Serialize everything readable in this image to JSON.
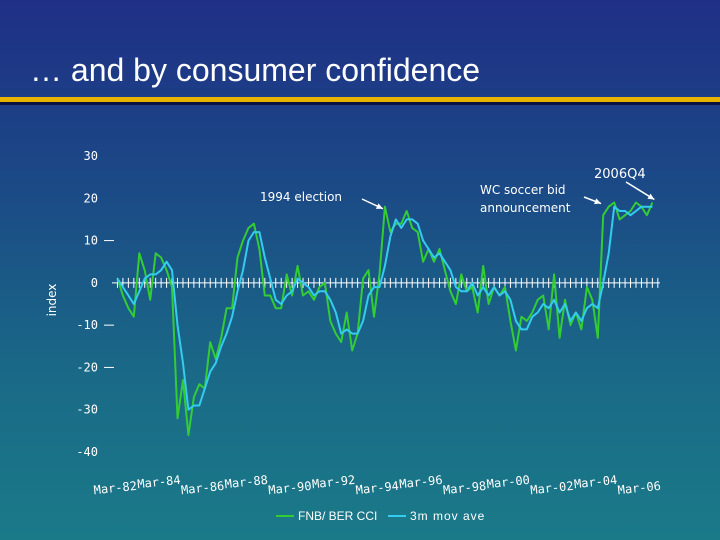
{
  "title": "… and by consumer confidence",
  "colors": {
    "rule_gold": "#e8b400",
    "rule_dark": "#0a1040",
    "series1": "#33cc33",
    "series2": "#33ccee",
    "text": "#ffffff"
  },
  "chart_data": {
    "type": "line",
    "ylabel": "index",
    "ylim": [
      -40,
      30
    ],
    "yticks": [
      "30",
      "20",
      "10",
      "0",
      "-10",
      "-20",
      "-30",
      "-40"
    ],
    "xlabels": [
      "Mar-82",
      "Mar-84",
      "Mar-86",
      "Mar-88",
      "Mar-90",
      "Mar-92",
      "Mar-94",
      "Mar-96",
      "Mar-98",
      "Mar-00",
      "Mar-02",
      "Mar-04",
      "Mar-06"
    ],
    "xlim": [
      1982.0,
      2007.1
    ],
    "legend_position": "bottom",
    "series": [
      {
        "name": "FNB/ BER CCI",
        "color": "#33cc33",
        "x": [
          1982.25,
          1982.5,
          1982.75,
          1983.0,
          1983.25,
          1983.5,
          1983.75,
          1984.0,
          1984.25,
          1984.5,
          1984.75,
          1985.0,
          1985.25,
          1985.5,
          1985.75,
          1986.0,
          1986.25,
          1986.5,
          1986.75,
          1987.0,
          1987.25,
          1987.5,
          1987.75,
          1988.0,
          1988.25,
          1988.5,
          1988.75,
          1989.0,
          1989.25,
          1989.5,
          1989.75,
          1990.0,
          1990.25,
          1990.5,
          1990.75,
          1991.0,
          1991.25,
          1991.5,
          1991.75,
          1992.0,
          1992.25,
          1992.5,
          1992.75,
          1993.0,
          1993.25,
          1993.5,
          1993.75,
          1994.0,
          1994.25,
          1994.5,
          1994.75,
          1995.0,
          1995.25,
          1995.5,
          1995.75,
          1996.0,
          1996.25,
          1996.5,
          1996.75,
          1997.0,
          1997.25,
          1997.5,
          1997.75,
          1998.0,
          1998.25,
          1998.5,
          1998.75,
          1999.0,
          1999.25,
          1999.5,
          1999.75,
          2000.0,
          2000.25,
          2000.5,
          2000.75,
          2001.0,
          2001.25,
          2001.5,
          2001.75,
          2002.0,
          2002.25,
          2002.5,
          2002.75,
          2003.0,
          2003.25,
          2003.5,
          2003.75,
          2004.0,
          2004.25,
          2004.5,
          2004.75,
          2005.0,
          2005.25,
          2005.5,
          2005.75,
          2006.0,
          2006.25,
          2006.5,
          2006.75
        ],
        "values": [
          1,
          -3,
          -6,
          -8,
          7,
          3,
          -4,
          7,
          6,
          3,
          -1,
          -32,
          -23,
          -36,
          -27,
          -24,
          -25,
          -14,
          -18,
          -13,
          -6,
          -6,
          6,
          10,
          13,
          14,
          8,
          -3,
          -3,
          -6,
          -6,
          2,
          -3,
          4,
          -3,
          -2,
          -4,
          -1,
          0,
          -9,
          -12,
          -14,
          -7,
          -16,
          -12,
          1,
          3,
          -8,
          2,
          18,
          12,
          14,
          14,
          17,
          13,
          12,
          5,
          8,
          5,
          8,
          3,
          -2,
          -5,
          2,
          -2,
          -1,
          -7,
          4,
          -5,
          -1,
          -3,
          -1,
          -9,
          -16,
          -8,
          -9,
          -7,
          -4,
          -3,
          -11,
          2,
          -13,
          -4,
          -10,
          -7,
          -11,
          -1,
          -4,
          -13,
          16,
          18,
          19,
          15,
          16,
          17,
          19,
          18,
          16,
          19
        ]
      },
      {
        "name": "3m mov ave",
        "color": "#33ccee",
        "x": [
          1982.25,
          1982.5,
          1982.75,
          1983.0,
          1983.25,
          1983.5,
          1983.75,
          1984.0,
          1984.25,
          1984.5,
          1984.75,
          1985.0,
          1985.25,
          1985.5,
          1985.75,
          1986.0,
          1986.25,
          1986.5,
          1986.75,
          1987.0,
          1987.25,
          1987.5,
          1987.75,
          1988.0,
          1988.25,
          1988.5,
          1988.75,
          1989.0,
          1989.25,
          1989.5,
          1989.75,
          1990.0,
          1990.25,
          1990.5,
          1990.75,
          1991.0,
          1991.25,
          1991.5,
          1991.75,
          1992.0,
          1992.25,
          1992.5,
          1992.75,
          1993.0,
          1993.25,
          1993.5,
          1993.75,
          1994.0,
          1994.25,
          1994.5,
          1994.75,
          1995.0,
          1995.25,
          1995.5,
          1995.75,
          1996.0,
          1996.25,
          1996.5,
          1996.75,
          1997.0,
          1997.25,
          1997.5,
          1997.75,
          1998.0,
          1998.25,
          1998.5,
          1998.75,
          1999.0,
          1999.25,
          1999.5,
          1999.75,
          2000.0,
          2000.25,
          2000.5,
          2000.75,
          2001.0,
          2001.25,
          2001.5,
          2001.75,
          2002.0,
          2002.25,
          2002.5,
          2002.75,
          2003.0,
          2003.25,
          2003.5,
          2003.75,
          2004.0,
          2004.25,
          2004.5,
          2004.75,
          2005.0,
          2005.25,
          2005.5,
          2005.75,
          2006.0,
          2006.25,
          2006.5,
          2006.75
        ],
        "values": [
          1,
          -1,
          -3,
          -5,
          -2,
          1,
          2,
          2,
          3,
          5,
          3,
          -10,
          -19,
          -30,
          -29,
          -29,
          -25,
          -21,
          -19,
          -15,
          -12,
          -8,
          -2,
          3,
          10,
          12,
          12,
          6,
          1,
          -4,
          -5,
          -3,
          -2,
          1,
          0,
          -1,
          -3,
          -2,
          -2,
          -4,
          -7,
          -12,
          -11,
          -12,
          -12,
          -9,
          -3,
          -1,
          -1,
          4,
          11,
          15,
          13,
          15,
          15,
          14,
          10,
          8,
          6,
          7,
          5,
          3,
          -1,
          -2,
          -2,
          0,
          -3,
          -1,
          -3,
          -1,
          -3,
          -2,
          -4,
          -9,
          -11,
          -11,
          -8,
          -7,
          -5,
          -6,
          -4,
          -7,
          -5,
          -9,
          -7,
          -9,
          -6,
          -5,
          -6,
          0,
          7,
          18,
          17,
          17,
          16,
          17,
          18,
          18,
          18
        ]
      }
    ],
    "annotations": [
      {
        "text": "1994 election",
        "x": 1994.5,
        "y": 18
      },
      {
        "text": "WC soccer bid\nannouncement",
        "x": 2004.4,
        "y": 19
      },
      {
        "text": "2006Q4",
        "x": 2006.75,
        "y": 19
      }
    ]
  }
}
